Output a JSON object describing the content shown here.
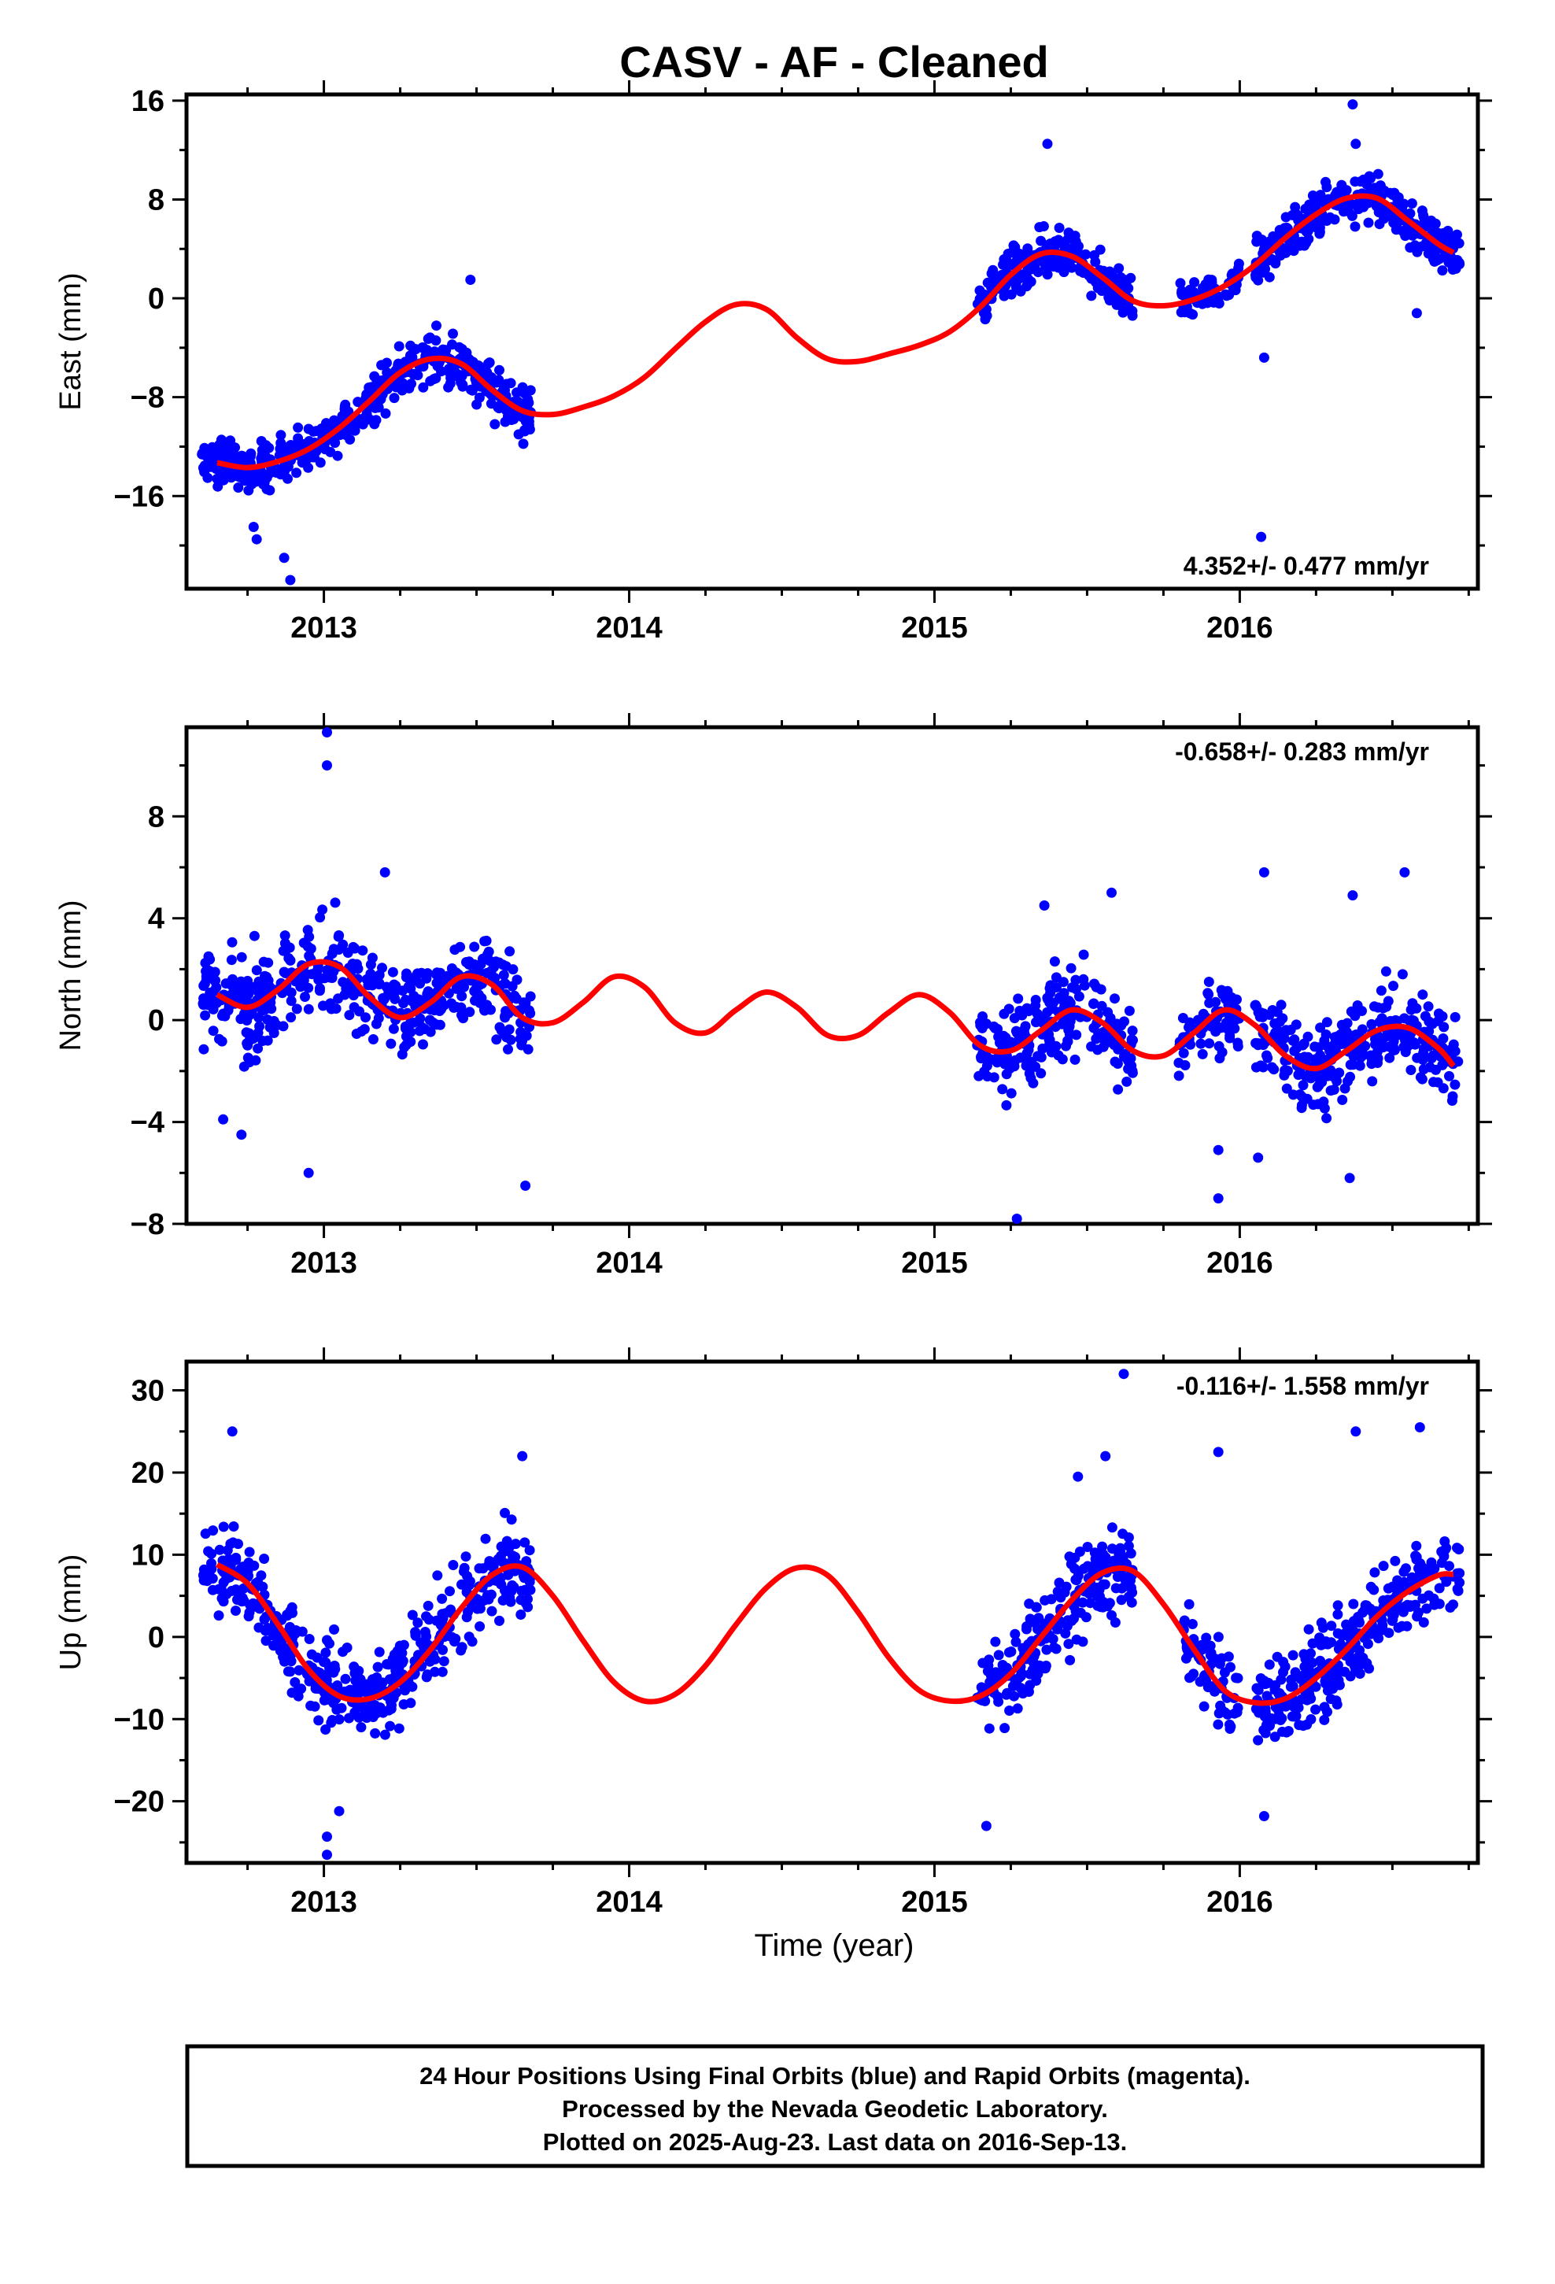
{
  "title": "CASV  - AF - Cleaned",
  "xlabel": "Time (year)",
  "footer": {
    "line1": "24 Hour Positions Using Final Orbits (blue) and Rapid Orbits (magenta).",
    "line2": "Processed by the Nevada Geodetic Laboratory.",
    "line3": "Plotted on 2025-Aug-23. Last data on 2016-Sep-13."
  },
  "colors": {
    "points": "#0000ff",
    "model": "#ff0000",
    "axis": "#000000"
  },
  "chart_data": [
    {
      "type": "scatter",
      "ylabel": "East (mm)",
      "rate_text": "4.352+/- 0.477 mm/yr",
      "rate_position": "bottom-right",
      "xlim": [
        2012.55,
        2016.78
      ],
      "ylim": [
        -23.5,
        16.5
      ],
      "yticks": [
        -16,
        -8,
        0,
        8,
        16
      ],
      "xticks": [
        2013,
        2014,
        2015,
        2016
      ],
      "xtick_labels": [
        "2013",
        "2014",
        "2015",
        "2016"
      ],
      "model": {
        "name": "",
        "x": [
          2012.65,
          2012.75,
          2012.85,
          2012.95,
          2013.05,
          2013.15,
          2013.25,
          2013.35,
          2013.45,
          2013.55,
          2013.65,
          2013.75,
          2013.85,
          2013.95,
          2014.05,
          2014.15,
          2014.25,
          2014.35,
          2014.45,
          2014.55,
          2014.65,
          2014.75,
          2014.85,
          2014.95,
          2015.05,
          2015.15,
          2015.25,
          2015.35,
          2015.45,
          2015.55,
          2015.65,
          2015.75,
          2015.85,
          2015.95,
          2016.05,
          2016.15,
          2016.25,
          2016.35,
          2016.45,
          2016.55,
          2016.65,
          2016.7
        ],
        "y": [
          -13.3,
          -13.7,
          -13.2,
          -12.2,
          -10.5,
          -8.3,
          -6.0,
          -4.9,
          -5.3,
          -7.4,
          -9.1,
          -9.4,
          -8.8,
          -7.9,
          -6.4,
          -4.1,
          -1.9,
          -0.5,
          -0.9,
          -3.2,
          -4.9,
          -5.1,
          -4.5,
          -3.8,
          -2.7,
          -0.7,
          1.9,
          3.6,
          3.4,
          1.7,
          -0.2,
          -0.6,
          -0.1,
          1.0,
          2.7,
          4.9,
          6.8,
          8.1,
          8.1,
          6.3,
          4.4,
          3.7
        ]
      },
      "points": {
        "name": "",
        "clusters": [
          {
            "x": [
              2012.6,
              2012.8
            ],
            "trend": "model",
            "scatter": 1.2,
            "n": 120
          },
          {
            "x": [
              2012.8,
              2013.2
            ],
            "trend": "model",
            "scatter": 1.4,
            "n": 150
          },
          {
            "x": [
              2013.2,
              2013.68
            ],
            "trend": "model",
            "scatter": 1.5,
            "n": 210
          },
          {
            "x": [
              2015.14,
              2015.65
            ],
            "trend": "model",
            "scatter": 1.3,
            "n": 230
          },
          {
            "x": [
              2015.8,
              2016.0
            ],
            "trend": "model",
            "scatter": 0.9,
            "n": 70
          },
          {
            "x": [
              2016.05,
              2016.72
            ],
            "trend": "model",
            "scatter": 1.4,
            "n": 300
          }
        ],
        "outliers": [
          {
            "x": 2012.77,
            "y": -18.5
          },
          {
            "x": 2012.78,
            "y": -19.5
          },
          {
            "x": 2012.87,
            "y": -21.0
          },
          {
            "x": 2012.89,
            "y": -22.8
          },
          {
            "x": 2013.48,
            "y": 1.5
          },
          {
            "x": 2015.37,
            "y": 12.5
          },
          {
            "x": 2016.07,
            "y": -19.3
          },
          {
            "x": 2016.08,
            "y": -4.8
          },
          {
            "x": 2016.37,
            "y": 15.7
          },
          {
            "x": 2016.38,
            "y": 12.5
          },
          {
            "x": 2016.58,
            "y": -1.2
          }
        ]
      }
    },
    {
      "type": "scatter",
      "ylabel": "North (mm)",
      "rate_text": "-0.658+/- 0.283 mm/yr",
      "rate_position": "top-right",
      "xlim": [
        2012.55,
        2016.78
      ],
      "ylim": [
        -8,
        11.5
      ],
      "yticks": [
        -8,
        -4,
        0,
        4,
        8
      ],
      "xticks": [
        2013,
        2014,
        2015,
        2016
      ],
      "xtick_labels": [
        "2013",
        "2014",
        "2015",
        "2016"
      ],
      "model": {
        "name": "",
        "x": [
          2012.65,
          2012.75,
          2012.85,
          2012.95,
          2013.05,
          2013.15,
          2013.25,
          2013.35,
          2013.45,
          2013.55,
          2013.65,
          2013.75,
          2013.85,
          2013.95,
          2014.05,
          2014.15,
          2014.25,
          2014.35,
          2014.45,
          2014.55,
          2014.65,
          2014.75,
          2014.85,
          2014.95,
          2015.05,
          2015.15,
          2015.25,
          2015.35,
          2015.45,
          2015.55,
          2015.65,
          2015.75,
          2015.85,
          2015.95,
          2016.05,
          2016.15,
          2016.25,
          2016.35,
          2016.45,
          2016.55,
          2016.65,
          2016.7
        ],
        "y": [
          1.0,
          0.5,
          1.2,
          2.2,
          2.1,
          0.9,
          0.1,
          0.7,
          1.7,
          1.4,
          0.1,
          -0.1,
          0.7,
          1.7,
          1.3,
          -0.1,
          -0.5,
          0.4,
          1.1,
          0.5,
          -0.6,
          -0.6,
          0.3,
          1.0,
          0.3,
          -1.0,
          -1.2,
          -0.4,
          0.4,
          -0.1,
          -1.2,
          -1.4,
          -0.5,
          0.4,
          -0.2,
          -1.4,
          -1.9,
          -1.2,
          -0.4,
          -0.3,
          -1.1,
          -1.8
        ]
      },
      "points": {
        "name": "",
        "clusters": [
          {
            "x": [
              2012.6,
              2013.2
            ],
            "trend": "model",
            "scatter": 1.3,
            "n": 260
          },
          {
            "x": [
              2013.2,
              2013.68
            ],
            "trend": "model",
            "scatter": 1.2,
            "n": 210
          },
          {
            "x": [
              2015.14,
              2015.65
            ],
            "trend": "model",
            "scatter": 1.2,
            "n": 230
          },
          {
            "x": [
              2015.8,
              2016.0
            ],
            "trend": "model",
            "scatter": 1.0,
            "n": 70
          },
          {
            "x": [
              2016.05,
              2016.72
            ],
            "trend": "model",
            "scatter": 1.2,
            "n": 300
          }
        ],
        "outliers": [
          {
            "x": 2013.01,
            "y": 11.3
          },
          {
            "x": 2013.01,
            "y": 10.0
          },
          {
            "x": 2012.95,
            "y": -6.0
          },
          {
            "x": 2012.67,
            "y": -3.9
          },
          {
            "x": 2012.73,
            "y": -4.5
          },
          {
            "x": 2013.66,
            "y": -6.5
          },
          {
            "x": 2015.27,
            "y": -7.8
          },
          {
            "x": 2015.93,
            "y": -7.0
          },
          {
            "x": 2015.93,
            "y": -5.1
          },
          {
            "x": 2016.06,
            "y": -5.4
          },
          {
            "x": 2016.08,
            "y": 5.8
          },
          {
            "x": 2016.36,
            "y": -6.2
          },
          {
            "x": 2016.37,
            "y": 4.9
          },
          {
            "x": 2016.54,
            "y": 5.8
          },
          {
            "x": 2015.58,
            "y": 5.0
          },
          {
            "x": 2015.36,
            "y": 4.5
          },
          {
            "x": 2013.2,
            "y": 5.8
          }
        ]
      }
    },
    {
      "type": "scatter",
      "ylabel": "Up (mm)",
      "rate_text": "-0.116+/- 1.558 mm/yr",
      "rate_position": "top-right",
      "xlim": [
        2012.55,
        2016.78
      ],
      "ylim": [
        -27.5,
        33.5
      ],
      "yticks": [
        -20,
        -10,
        0,
        10,
        20,
        30
      ],
      "xticks": [
        2013,
        2014,
        2015,
        2016
      ],
      "xtick_labels": [
        "2013",
        "2014",
        "2015",
        "2016"
      ],
      "model": {
        "name": "",
        "x": [
          2012.65,
          2012.75,
          2012.85,
          2012.95,
          2013.05,
          2013.15,
          2013.25,
          2013.35,
          2013.45,
          2013.55,
          2013.65,
          2013.75,
          2013.85,
          2013.95,
          2014.05,
          2014.15,
          2014.25,
          2014.35,
          2014.45,
          2014.55,
          2014.65,
          2014.75,
          2014.85,
          2014.95,
          2015.05,
          2015.15,
          2015.25,
          2015.35,
          2015.45,
          2015.55,
          2015.65,
          2015.75,
          2015.85,
          2015.95,
          2016.05,
          2016.15,
          2016.25,
          2016.35,
          2016.45,
          2016.55,
          2016.65,
          2016.7
        ],
        "y": [
          8.8,
          6.5,
          1.5,
          -4.0,
          -7.2,
          -7.5,
          -5.5,
          -1.5,
          3.5,
          7.5,
          8.5,
          5.0,
          -0.5,
          -5.5,
          -7.8,
          -7.0,
          -3.5,
          1.5,
          6.0,
          8.4,
          7.5,
          3.0,
          -2.5,
          -6.5,
          -7.8,
          -7.2,
          -4.5,
          0.0,
          4.5,
          7.8,
          8.0,
          4.0,
          -1.5,
          -6.5,
          -8.0,
          -7.5,
          -5.0,
          -1.5,
          2.5,
          5.5,
          7.5,
          7.6
        ]
      },
      "points": {
        "name": "",
        "clusters": [
          {
            "x": [
              2012.6,
              2013.2
            ],
            "trend": "model",
            "scatter": 3.8,
            "n": 260
          },
          {
            "x": [
              2013.2,
              2013.68
            ],
            "trend": "model",
            "scatter": 3.8,
            "n": 210
          },
          {
            "x": [
              2015.14,
              2015.65
            ],
            "trend": "model",
            "scatter": 3.8,
            "n": 230
          },
          {
            "x": [
              2015.8,
              2016.0
            ],
            "trend": "model",
            "scatter": 3.5,
            "n": 70
          },
          {
            "x": [
              2016.05,
              2016.72
            ],
            "trend": "model",
            "scatter": 3.8,
            "n": 300
          }
        ],
        "outliers": [
          {
            "x": 2012.7,
            "y": 25.0
          },
          {
            "x": 2013.01,
            "y": -24.3
          },
          {
            "x": 2013.01,
            "y": -26.5
          },
          {
            "x": 2013.05,
            "y": -21.2
          },
          {
            "x": 2013.65,
            "y": 22.0
          },
          {
            "x": 2015.17,
            "y": -23.0
          },
          {
            "x": 2015.62,
            "y": 32.0
          },
          {
            "x": 2015.93,
            "y": 22.5
          },
          {
            "x": 2016.08,
            "y": -21.8
          },
          {
            "x": 2016.38,
            "y": 25.0
          },
          {
            "x": 2016.59,
            "y": 25.5
          },
          {
            "x": 2015.47,
            "y": 19.5
          },
          {
            "x": 2015.56,
            "y": 22.0
          }
        ]
      }
    }
  ]
}
